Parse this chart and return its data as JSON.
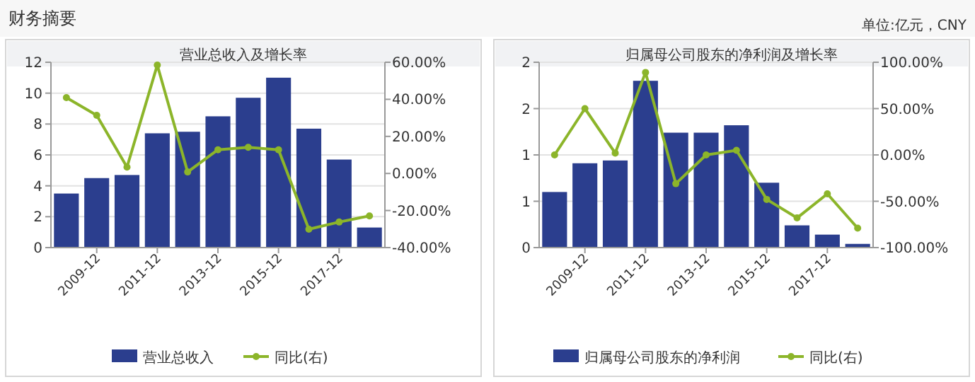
{
  "chart_data": [
    {
      "type": "bar",
      "title": "营业总收入及增长率",
      "annotations": [
        "财务摘要",
        "单位:亿元，CNY"
      ],
      "categories": [
        null,
        "2009-12",
        null,
        "2011-12",
        null,
        "2013-12",
        null,
        "2015-12",
        null,
        "2017-12",
        null
      ],
      "series": [
        {
          "name": "营业总收入",
          "color": "#2b3e8e",
          "values": [
            3.5,
            4.5,
            4.7,
            7.4,
            7.5,
            8.5,
            9.7,
            11,
            7.7,
            5.7,
            1.3
          ]
        },
        {
          "name": "同比(右)",
          "type": "line",
          "axis": "y2",
          "color": "#8cb52a",
          "marker": "circle",
          "values": [
            40.9,
            31.4,
            3.4,
            58.5,
            0.8,
            12.8,
            14.1,
            12.8,
            -30.1,
            -26.2,
            -22.9
          ]
        }
      ],
      "ylim": [
        0,
        12
      ],
      "yticks": [
        0,
        2,
        4,
        6,
        8,
        10,
        12
      ],
      "y2lim": [
        -40,
        60
      ],
      "y2ticks": [
        {
          "value": -40,
          "label": "-40.00%"
        },
        {
          "value": -20,
          "label": "-20.00%"
        },
        {
          "value": 0,
          "label": "0.00%"
        },
        {
          "value": 20,
          "label": "20.00%"
        },
        {
          "value": 40,
          "label": "40.00%"
        },
        {
          "value": 60,
          "label": "60.00%"
        }
      ],
      "grid": "y",
      "legend": "bottom"
    },
    {
      "type": "bar",
      "title": "归属母公司股东的净利润及增长率",
      "categories": [
        null,
        "2009-12",
        null,
        "2011-12",
        null,
        "2013-12",
        null,
        "2015-12",
        null,
        "2017-12",
        null
      ],
      "series": [
        {
          "name": "归属母公司股东的净利润",
          "color": "#2b3e8e",
          "values": [
            0.6,
            0.91,
            0.94,
            1.8,
            1.24,
            1.24,
            1.32,
            0.7,
            0.24,
            0.14,
            0.04
          ]
        },
        {
          "name": "同比(右)",
          "type": "line",
          "axis": "y2",
          "color": "#8cb52a",
          "marker": "circle",
          "values": [
            0,
            50,
            2,
            89,
            -31,
            0,
            5,
            -48,
            -68,
            -42,
            -79
          ]
        }
      ],
      "ylim": [
        0,
        2
      ],
      "yticks": [
        0,
        {
          "value": 0.5,
          "label": "1"
        },
        1,
        {
          "value": 1.5,
          "label": "2"
        },
        2
      ],
      "y2lim": [
        -100,
        100
      ],
      "y2ticks": [
        {
          "value": -100,
          "label": "-100.00%"
        },
        {
          "value": -50,
          "label": "-50.00%"
        },
        {
          "value": 0,
          "label": "0.00%"
        },
        {
          "value": 50,
          "label": "50.00%"
        },
        {
          "value": 100,
          "label": "100.00%"
        }
      ],
      "grid": "y",
      "legend": "bottom"
    }
  ]
}
